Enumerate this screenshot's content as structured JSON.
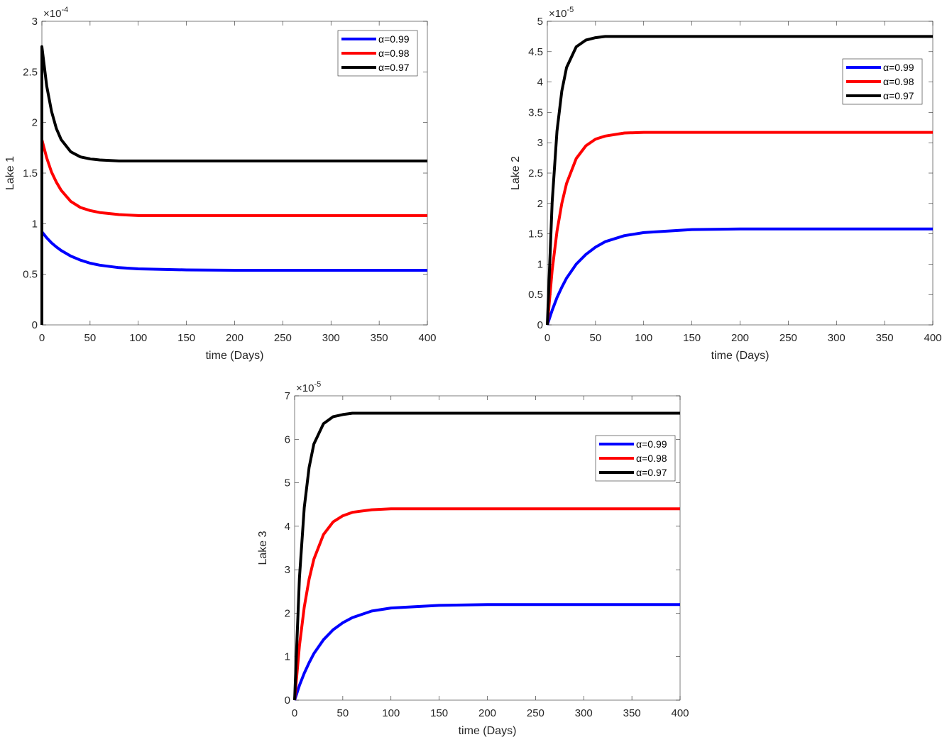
{
  "chart_data": [
    {
      "type": "line",
      "xlabel": "time (Days)",
      "ylabel": "Lake 1",
      "exponent": "-4",
      "xlim": [
        0,
        400
      ],
      "ylim": [
        0,
        3
      ],
      "xticks": [
        0,
        50,
        100,
        150,
        200,
        250,
        300,
        350,
        400
      ],
      "yticks": [
        0,
        0.5,
        1,
        1.5,
        2,
        2.5,
        3
      ],
      "ytick_labels": [
        "0",
        "0.5",
        "1",
        "1.5",
        "2",
        "2.5",
        "3"
      ],
      "legend": "top-right",
      "grid": false,
      "x": [
        0,
        0,
        5,
        10,
        15,
        20,
        30,
        40,
        50,
        60,
        80,
        100,
        150,
        200,
        300,
        400
      ],
      "series": [
        {
          "name": "α=0.99",
          "color": "#0000ff",
          "values": [
            0,
            0.92,
            0.86,
            0.81,
            0.77,
            0.735,
            0.68,
            0.64,
            0.61,
            0.59,
            0.566,
            0.554,
            0.543,
            0.54,
            0.54,
            0.54
          ]
        },
        {
          "name": "α=0.98",
          "color": "#ff0000",
          "values": [
            0,
            1.83,
            1.65,
            1.51,
            1.41,
            1.33,
            1.22,
            1.16,
            1.13,
            1.11,
            1.09,
            1.08,
            1.08,
            1.08,
            1.08,
            1.08
          ]
        },
        {
          "name": "α=0.97",
          "color": "#000000",
          "values": [
            0,
            2.75,
            2.36,
            2.11,
            1.94,
            1.83,
            1.71,
            1.66,
            1.64,
            1.63,
            1.62,
            1.62,
            1.62,
            1.62,
            1.62,
            1.62
          ]
        }
      ]
    },
    {
      "type": "line",
      "xlabel": "time (Days)",
      "ylabel": "Lake 2",
      "exponent": "-5",
      "xlim": [
        0,
        400
      ],
      "ylim": [
        0,
        5
      ],
      "xticks": [
        0,
        50,
        100,
        150,
        200,
        250,
        300,
        350,
        400
      ],
      "yticks": [
        0,
        0.5,
        1,
        1.5,
        2,
        2.5,
        3,
        3.5,
        4,
        4.5,
        5
      ],
      "ytick_labels": [
        "0",
        "0.5",
        "1",
        "1.5",
        "2",
        "2.5",
        "3",
        "3.5",
        "4",
        "4.5",
        "5"
      ],
      "legend": "top-right",
      "grid": false,
      "x": [
        0,
        5,
        10,
        15,
        20,
        30,
        40,
        50,
        60,
        80,
        100,
        150,
        200,
        300,
        400
      ],
      "series": [
        {
          "name": "α=0.99",
          "color": "#0000ff",
          "values": [
            0,
            0.24,
            0.45,
            0.62,
            0.77,
            1.0,
            1.16,
            1.28,
            1.37,
            1.47,
            1.52,
            1.57,
            1.58,
            1.58,
            1.58
          ]
        },
        {
          "name": "α=0.98",
          "color": "#ff0000",
          "values": [
            0,
            0.9,
            1.54,
            2.0,
            2.33,
            2.74,
            2.95,
            3.06,
            3.11,
            3.16,
            3.17,
            3.17,
            3.17,
            3.17,
            3.17
          ]
        },
        {
          "name": "α=0.97",
          "color": "#000000",
          "values": [
            0,
            2.02,
            3.19,
            3.85,
            4.24,
            4.58,
            4.69,
            4.73,
            4.75,
            4.75,
            4.75,
            4.75,
            4.75,
            4.75,
            4.75
          ]
        }
      ]
    },
    {
      "type": "line",
      "xlabel": "time (Days)",
      "ylabel": "Lake 3",
      "exponent": "-5",
      "xlim": [
        0,
        400
      ],
      "ylim": [
        0,
        7
      ],
      "xticks": [
        0,
        50,
        100,
        150,
        200,
        250,
        300,
        350,
        400
      ],
      "yticks": [
        0,
        1,
        2,
        3,
        4,
        5,
        6,
        7
      ],
      "ytick_labels": [
        "0",
        "1",
        "2",
        "3",
        "4",
        "5",
        "6",
        "7"
      ],
      "legend": "top-right",
      "grid": false,
      "x": [
        0,
        5,
        10,
        15,
        20,
        30,
        40,
        50,
        60,
        80,
        100,
        150,
        200,
        300,
        400
      ],
      "series": [
        {
          "name": "α=0.99",
          "color": "#0000ff",
          "values": [
            0,
            0.34,
            0.62,
            0.86,
            1.07,
            1.39,
            1.62,
            1.78,
            1.9,
            2.05,
            2.12,
            2.18,
            2.2,
            2.2,
            2.2
          ]
        },
        {
          "name": "α=0.98",
          "color": "#ff0000",
          "values": [
            0,
            1.25,
            2.14,
            2.78,
            3.24,
            3.81,
            4.1,
            4.24,
            4.32,
            4.38,
            4.4,
            4.4,
            4.4,
            4.4,
            4.4
          ]
        },
        {
          "name": "α=0.97",
          "color": "#000000",
          "values": [
            0,
            2.81,
            4.43,
            5.35,
            5.89,
            6.36,
            6.52,
            6.57,
            6.6,
            6.6,
            6.6,
            6.6,
            6.6,
            6.6,
            6.6
          ]
        }
      ]
    }
  ]
}
